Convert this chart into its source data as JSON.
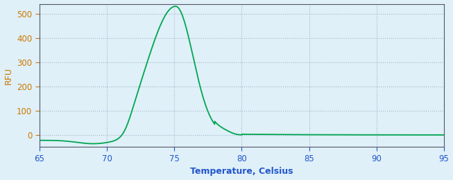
{
  "title": "",
  "xlabel": "Temperature, Celsius",
  "ylabel": "RFU",
  "xlim": [
    65,
    95
  ],
  "ylim": [
    -50,
    540
  ],
  "xticks": [
    65,
    70,
    75,
    80,
    85,
    90,
    95
  ],
  "yticks": [
    0,
    100,
    200,
    300,
    400,
    500
  ],
  "line_color": "#00A550",
  "background_color": "#dff0f8",
  "plot_bg_color": "#dff0f8",
  "grid_color": "#aaaacc",
  "xlabel_color": "#2255cc",
  "xtick_color": "#2255cc",
  "ylabel_color": "#cc7700",
  "ytick_color": "#cc7700",
  "spine_color": "#555566",
  "peak_temp": 75.1,
  "peak_rfu": 530
}
